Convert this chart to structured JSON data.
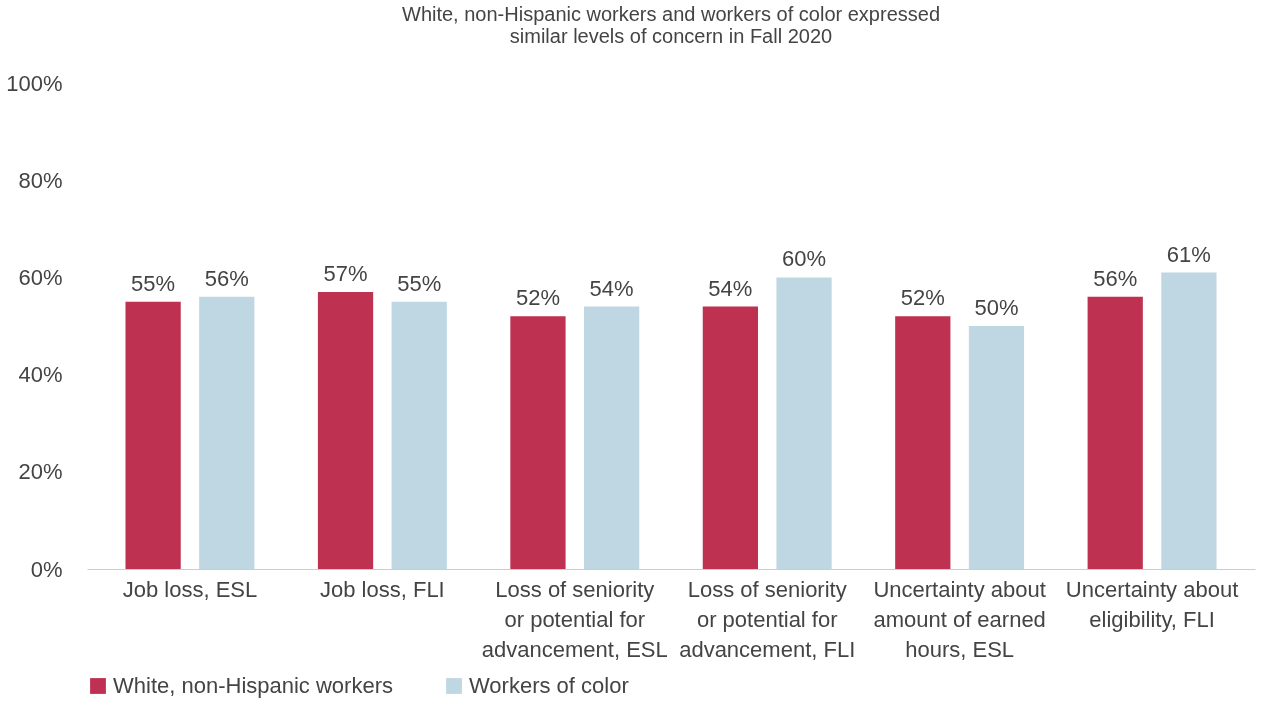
{
  "chart_data": {
    "type": "bar",
    "title": "White, non-Hispanic workers and workers of color expressed similar levels of concern in Fall 2020",
    "categories": [
      "Job loss, ESL",
      "Job loss, FLI",
      "Loss of seniority or potential for advancement, ESL",
      "Loss of seniority or potential for advancement, FLI",
      "Uncertainty about amount of earned hours, ESL",
      "Uncertainty about eligibility, FLI"
    ],
    "series": [
      {
        "name": "White, non-Hispanic workers",
        "color": "#be3150",
        "values": [
          55,
          57,
          52,
          54,
          52,
          56
        ],
        "value_labels": [
          "55%",
          "57%",
          "52%",
          "54%",
          "52%",
          "56%"
        ]
      },
      {
        "name": "Workers of color",
        "color": "#bfd7e2",
        "values": [
          56,
          55,
          54,
          60,
          50,
          61
        ],
        "value_labels": [
          "56%",
          "55%",
          "54%",
          "60%",
          "50%",
          "61%"
        ]
      }
    ],
    "ylim": [
      0,
      100
    ],
    "yticks": [
      {
        "value": 0,
        "label": "0%"
      },
      {
        "value": 20,
        "label": "20%"
      },
      {
        "value": 40,
        "label": "40%"
      },
      {
        "value": 60,
        "label": "60%"
      },
      {
        "value": 80,
        "label": "80%"
      },
      {
        "value": 100,
        "label": "100%"
      }
    ],
    "grid": false,
    "legend": "bottom"
  }
}
